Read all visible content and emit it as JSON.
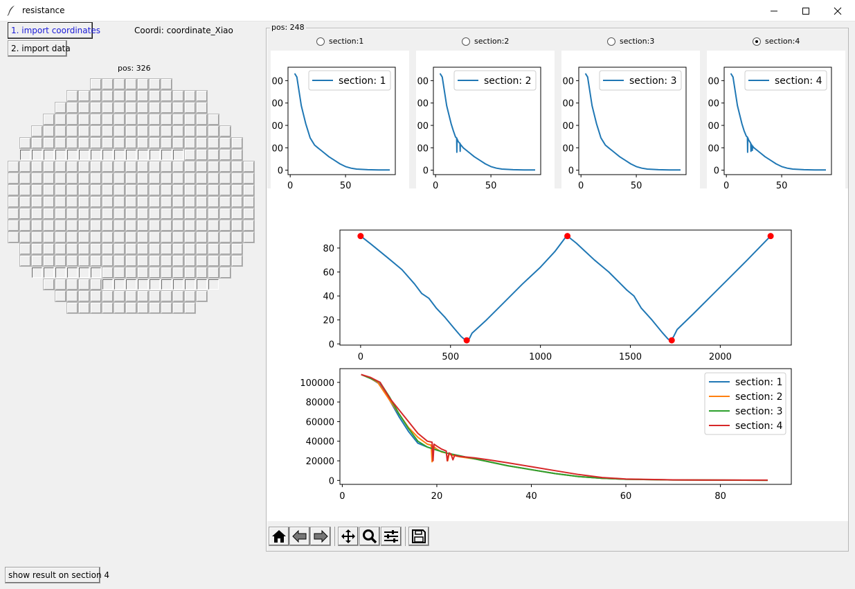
{
  "window": {
    "title": "resistance"
  },
  "left": {
    "import_coords_label": "1. import coordinates",
    "import_data_label": "2. import data",
    "coordi_text": "Coordi: coordinate_Xiao",
    "pos_text": "pos: 326",
    "show_result_label": "show result on section 4"
  },
  "right": {
    "frame_label": "pos: 248",
    "radios": [
      {
        "label": "section:1",
        "checked": false
      },
      {
        "label": "section:2",
        "checked": false
      },
      {
        "label": "section:3",
        "checked": false
      },
      {
        "label": "section:4",
        "checked": true
      }
    ]
  },
  "colors": {
    "c1": "#1f77b4",
    "c2": "#ff7f0e",
    "c3": "#2ca02c",
    "c4": "#d62728",
    "marker": "#ff0000"
  },
  "toolbar_icons": [
    "home-icon",
    "back-arrow-icon",
    "forward-arrow-icon",
    "pan-icon",
    "zoom-icon",
    "configure-subplots-icon",
    "save-icon"
  ],
  "chart_data": [
    {
      "type": "line",
      "panel": 1,
      "series": [
        {
          "name": "section: 1",
          "x": [
            4,
            6,
            8,
            10,
            12,
            14,
            16,
            18,
            20,
            22,
            25,
            28,
            31,
            35,
            40,
            45,
            50,
            55,
            60,
            70,
            80,
            90
          ],
          "y": [
            108000,
            104000,
            88000,
            72000,
            62000,
            52000,
            44000,
            36000,
            32000,
            28000,
            25000,
            22000,
            19000,
            15000,
            11000,
            7000,
            4000,
            2200,
            1200,
            500,
            300,
            200
          ]
        }
      ],
      "xticks": [
        "0",
        "50"
      ],
      "yticks_partial": [
        "00",
        "00",
        "00",
        "00",
        "0"
      ],
      "xlim": [
        -2,
        95
      ],
      "ylim": [
        -5000,
        115000
      ],
      "legend": "top-right"
    },
    {
      "type": "line",
      "panel": 2,
      "series": [
        {
          "name": "section: 2",
          "x": [
            4,
            6,
            8,
            10,
            12,
            14,
            16,
            18,
            19,
            19.2,
            19.4,
            20,
            21,
            22,
            22.2,
            22.4,
            23,
            25,
            28,
            31,
            35,
            40,
            45,
            50,
            55,
            60,
            70,
            80,
            90
          ],
          "y": [
            108000,
            104000,
            88000,
            72000,
            62000,
            52000,
            44000,
            37000,
            36000,
            20000,
            35000,
            33000,
            31000,
            30000,
            21000,
            29000,
            28000,
            25000,
            22000,
            19000,
            15000,
            11000,
            7000,
            4000,
            2200,
            1200,
            500,
            300,
            200
          ]
        }
      ],
      "xticks": [
        "0",
        "50"
      ],
      "yticks_partial": [
        "00",
        "00",
        "00",
        "00",
        "0"
      ],
      "xlim": [
        -2,
        95
      ],
      "ylim": [
        -5000,
        115000
      ],
      "legend": "top-right"
    },
    {
      "type": "line",
      "panel": 3,
      "series": [
        {
          "name": "section: 3",
          "x": [
            4,
            6,
            8,
            10,
            12,
            14,
            16,
            18,
            20,
            22,
            25,
            28,
            31,
            35,
            40,
            45,
            50,
            55,
            60,
            70,
            80,
            90
          ],
          "y": [
            108000,
            104000,
            88000,
            72000,
            62000,
            52000,
            44000,
            36000,
            32000,
            28000,
            25000,
            22000,
            19000,
            15000,
            11000,
            7000,
            4000,
            2200,
            1200,
            500,
            300,
            200
          ]
        }
      ],
      "xticks": [
        "0",
        "50"
      ],
      "yticks_partial": [
        "00",
        "00",
        "00",
        "00",
        "0"
      ],
      "xlim": [
        -2,
        95
      ],
      "ylim": [
        -5000,
        115000
      ],
      "legend": "top-right"
    },
    {
      "type": "line",
      "panel": 4,
      "series": [
        {
          "name": "section: 4",
          "x": [
            4,
            6,
            8,
            10,
            12,
            14,
            16,
            18,
            19,
            19.2,
            19.4,
            20,
            21,
            22,
            22.2,
            22.5,
            23,
            23.4,
            23.8,
            24.2,
            25,
            28,
            31,
            35,
            40,
            45,
            50,
            55,
            60,
            70,
            80,
            90
          ],
          "y": [
            108000,
            104000,
            88000,
            72000,
            62000,
            52000,
            44000,
            38000,
            37000,
            20000,
            36000,
            34000,
            32000,
            30000,
            21000,
            29000,
            28000,
            22000,
            27000,
            26000,
            25000,
            22000,
            19000,
            15000,
            11000,
            7000,
            4000,
            2200,
            1200,
            500,
            300,
            200
          ]
        }
      ],
      "xticks": [
        "0",
        "50"
      ],
      "yticks_partial": [
        "00",
        "00",
        "00",
        "00",
        "0"
      ],
      "xlim": [
        -2,
        95
      ],
      "ylim": [
        -5000,
        115000
      ],
      "legend": "top-right"
    },
    {
      "type": "line",
      "panel": "path",
      "series": [
        {
          "x": [
            0,
            60,
            150,
            230,
            300,
            340,
            380,
            420,
            470,
            520,
            560,
            585,
            600,
            620,
            700,
            800,
            900,
            1000,
            1080,
            1140,
            1150,
            1200,
            1250,
            1300,
            1380,
            1440,
            1480,
            1520,
            1560,
            1620,
            1680,
            1710,
            1725,
            1740,
            1760,
            1850,
            1950,
            2050,
            2150,
            2280
          ],
          "y": [
            90,
            83,
            72,
            62,
            50,
            42,
            38,
            30,
            22,
            13,
            6,
            3,
            3,
            9,
            20,
            35,
            50,
            64,
            77,
            89,
            90,
            84,
            77,
            70,
            60,
            51,
            45,
            40,
            30,
            20,
            9,
            4,
            3,
            6,
            12,
            25,
            40,
            55,
            70,
            90
          ]
        }
      ],
      "markers": {
        "x": [
          0,
          590,
          1150,
          1730,
          2280
        ],
        "y": [
          90,
          3,
          90,
          3,
          90
        ]
      },
      "xticks": [
        "0",
        "500",
        "1000",
        "1500",
        "2000"
      ],
      "yticks": [
        "0",
        "20",
        "40",
        "60",
        "80"
      ],
      "xlim": [
        -115,
        2395
      ],
      "ylim": [
        -1,
        95
      ]
    },
    {
      "type": "line",
      "panel": "overlay",
      "series": [
        {
          "name": "section: 1",
          "x": [
            4,
            6,
            8,
            10,
            12,
            14,
            16,
            18,
            20,
            22,
            25,
            28,
            31,
            35,
            40,
            45,
            50,
            55,
            60,
            70,
            80,
            90
          ],
          "y": [
            108000,
            104000,
            98000,
            82000,
            65000,
            50000,
            38000,
            34000,
            31000,
            28000,
            25000,
            22000,
            19000,
            15000,
            11000,
            7000,
            4000,
            2200,
            1200,
            500,
            300,
            200
          ]
        },
        {
          "name": "section: 2",
          "x": [
            4,
            6,
            7.5,
            10,
            12,
            14,
            16,
            18,
            18.8,
            19,
            19.2,
            20,
            21,
            22,
            22.3,
            22.6,
            23,
            25,
            28,
            31,
            35,
            40,
            45,
            50,
            55,
            60,
            70,
            80,
            90
          ],
          "y": [
            108000,
            104000,
            100000,
            82000,
            68000,
            54000,
            44000,
            37000,
            36000,
            19000,
            35000,
            32000,
            29000,
            28000,
            20000,
            27000,
            26000,
            24000,
            22000,
            19000,
            15000,
            11000,
            7000,
            4000,
            2200,
            1200,
            500,
            300,
            200
          ]
        },
        {
          "name": "section: 3",
          "x": [
            4,
            6,
            8,
            10,
            12,
            14,
            16,
            18,
            20,
            22,
            25,
            28,
            31,
            35,
            40,
            45,
            50,
            55,
            60,
            70,
            80,
            90
          ],
          "y": [
            108000,
            104000,
            100000,
            85000,
            68000,
            53000,
            40000,
            34000,
            31000,
            28000,
            25000,
            22000,
            19000,
            15000,
            11000,
            7000,
            4000,
            2200,
            1200,
            500,
            300,
            200
          ]
        },
        {
          "name": "section: 4",
          "x": [
            4,
            6,
            8,
            10,
            12,
            14,
            16,
            18,
            19,
            19.2,
            19.4,
            20,
            21,
            22,
            22.2,
            22.6,
            23,
            23.4,
            23.8,
            24.2,
            25,
            28,
            31,
            35,
            40,
            45,
            50,
            55,
            60,
            70,
            80,
            90
          ],
          "y": [
            108000,
            105000,
            100000,
            84000,
            72000,
            60000,
            48000,
            40000,
            39000,
            20000,
            37000,
            35000,
            32000,
            30000,
            20000,
            28000,
            27000,
            21000,
            26000,
            25000,
            24500,
            23000,
            21000,
            18000,
            14000,
            10000,
            6000,
            3000,
            1500,
            600,
            400,
            300
          ]
        }
      ],
      "xticks": [
        "0",
        "20",
        "40",
        "60",
        "80"
      ],
      "yticks": [
        "0",
        "20000",
        "40000",
        "60000",
        "80000",
        "100000"
      ],
      "xlim": [
        -0.5,
        95
      ],
      "ylim": [
        -4000,
        114000
      ],
      "legend": "top-right"
    }
  ]
}
